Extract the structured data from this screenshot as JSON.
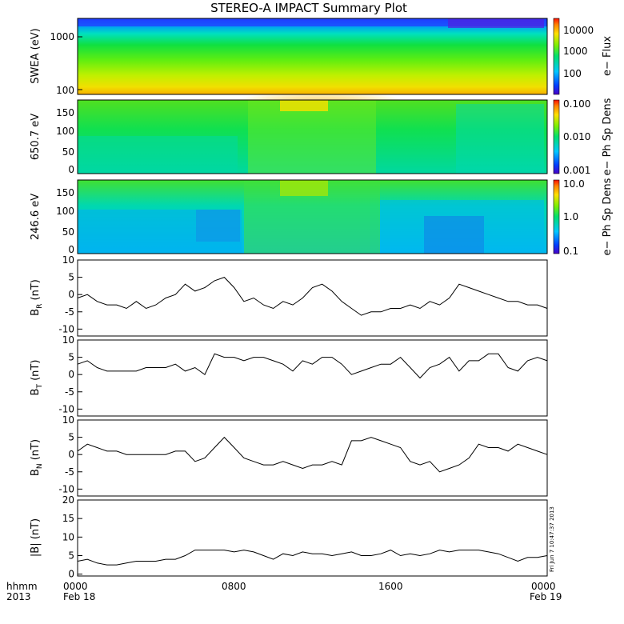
{
  "title": "STEREO-A IMPACT Summary Plot",
  "footer": {
    "fmt_label": "hhmm",
    "year_label": "2013",
    "ticks": [
      {
        "time": "0000",
        "date": "Feb 18"
      },
      {
        "time": "0800",
        "date": ""
      },
      {
        "time": "1600",
        "date": ""
      },
      {
        "time": "0000",
        "date": "Feb 19"
      }
    ]
  },
  "stamp": "Fri Jun  7 10:47:37 2013",
  "colors": {
    "axis": "#000000",
    "line": "#000000",
    "background": "#ffffff"
  },
  "chart_data": [
    {
      "type": "heatmap",
      "ylabel": "SWEA (eV)",
      "y_scale": "log",
      "ylim": [
        90,
        2000
      ],
      "yticks": [
        "1000",
        "100"
      ],
      "colorbar": {
        "label": "e− Flux",
        "scale": "log",
        "ticks": [
          "10000",
          "1000",
          "100"
        ]
      },
      "description_values": {
        "x_hours": [
          0,
          8,
          16,
          24
        ]
      }
    },
    {
      "type": "heatmap",
      "ylabel": "650.7 eV",
      "ylim": [
        -5,
        180
      ],
      "yticks": [
        "150",
        "100",
        "50",
        "0"
      ],
      "colorbar": {
        "label": "e− Ph Sp Dens",
        "scale": "log",
        "ticks": [
          "0.100",
          "0.010",
          "0.001"
        ]
      }
    },
    {
      "type": "heatmap",
      "ylabel": "246.6 eV",
      "ylim": [
        -5,
        180
      ],
      "yticks": [
        "150",
        "100",
        "50",
        "0"
      ],
      "colorbar": {
        "label": "e− Ph Sp Dens",
        "scale": "log",
        "ticks": [
          "10.0",
          "1.0",
          "0.1"
        ]
      }
    },
    {
      "type": "line",
      "ylabel_main": "B",
      "ylabel_sub": "R",
      "ylabel_unit": " (nT)",
      "ylim": [
        -12,
        10
      ],
      "yticks": [
        "10",
        "5",
        "0",
        "-5",
        "-10"
      ],
      "x": [
        0,
        0.5,
        1,
        1.5,
        2,
        2.5,
        3,
        3.5,
        4,
        4.5,
        5,
        5.5,
        6,
        6.5,
        7,
        7.5,
        8,
        8.5,
        9,
        9.5,
        10,
        10.5,
        11,
        11.5,
        12,
        12.5,
        13,
        13.5,
        14,
        14.5,
        15,
        15.5,
        16,
        16.5,
        17,
        17.5,
        18,
        18.5,
        19,
        19.5,
        20,
        20.5,
        21,
        21.5,
        22,
        22.5,
        23,
        23.5,
        24
      ],
      "y": [
        -1,
        0,
        -2,
        -3,
        -3,
        -4,
        -2,
        -4,
        -3,
        -1,
        0,
        3,
        1,
        2,
        4,
        5,
        2,
        -2,
        -1,
        -3,
        -4,
        -2,
        -3,
        -1,
        2,
        3,
        1,
        -2,
        -4,
        -6,
        -5,
        -5,
        -4,
        -4,
        -3,
        -4,
        -2,
        -3,
        -1,
        3,
        2,
        1,
        0,
        -1,
        -2,
        -2,
        -3,
        -3,
        -4
      ]
    },
    {
      "type": "line",
      "ylabel_main": "B",
      "ylabel_sub": "T",
      "ylabel_unit": " (nT)",
      "ylim": [
        -12,
        10
      ],
      "yticks": [
        "10",
        "5",
        "0",
        "-5",
        "-10"
      ],
      "x": [
        0,
        0.5,
        1,
        1.5,
        2,
        2.5,
        3,
        3.5,
        4,
        4.5,
        5,
        5.5,
        6,
        6.5,
        7,
        7.5,
        8,
        8.5,
        9,
        9.5,
        10,
        10.5,
        11,
        11.5,
        12,
        12.5,
        13,
        13.5,
        14,
        14.5,
        15,
        15.5,
        16,
        16.5,
        17,
        17.5,
        18,
        18.5,
        19,
        19.5,
        20,
        20.5,
        21,
        21.5,
        22,
        22.5,
        23,
        23.5,
        24
      ],
      "y": [
        3,
        4,
        2,
        1,
        1,
        1,
        1,
        2,
        2,
        2,
        3,
        1,
        2,
        0,
        6,
        5,
        5,
        4,
        5,
        5,
        4,
        3,
        1,
        4,
        3,
        5,
        5,
        3,
        0,
        1,
        2,
        3,
        3,
        5,
        2,
        -1,
        2,
        3,
        5,
        1,
        4,
        4,
        6,
        6,
        2,
        1,
        4,
        5,
        4
      ]
    },
    {
      "type": "line",
      "ylabel_main": "B",
      "ylabel_sub": "N",
      "ylabel_unit": " (nT)",
      "ylim": [
        -12,
        10
      ],
      "yticks": [
        "10",
        "5",
        "0",
        "-5",
        "-10"
      ],
      "x": [
        0,
        0.5,
        1,
        1.5,
        2,
        2.5,
        3,
        3.5,
        4,
        4.5,
        5,
        5.5,
        6,
        6.5,
        7,
        7.5,
        8,
        8.5,
        9,
        9.5,
        10,
        10.5,
        11,
        11.5,
        12,
        12.5,
        13,
        13.5,
        14,
        14.5,
        15,
        15.5,
        16,
        16.5,
        17,
        17.5,
        18,
        18.5,
        19,
        19.5,
        20,
        20.5,
        21,
        21.5,
        22,
        22.5,
        23,
        23.5,
        24
      ],
      "y": [
        1,
        3,
        2,
        1,
        1,
        0,
        0,
        0,
        0,
        0,
        1,
        1,
        -2,
        -1,
        2,
        5,
        2,
        -1,
        -2,
        -3,
        -3,
        -2,
        -3,
        -4,
        -3,
        -3,
        -2,
        -3,
        4,
        4,
        5,
        4,
        3,
        2,
        -2,
        -3,
        -2,
        -5,
        -4,
        -3,
        -1,
        3,
        2,
        2,
        1,
        3,
        2,
        1,
        0
      ]
    },
    {
      "type": "line",
      "ylabel": "|B| (nT)",
      "ylim": [
        -0.5,
        20
      ],
      "yticks": [
        "20",
        "15",
        "10",
        "5",
        "0"
      ],
      "x": [
        0,
        0.5,
        1,
        1.5,
        2,
        2.5,
        3,
        3.5,
        4,
        4.5,
        5,
        5.5,
        6,
        6.5,
        7,
        7.5,
        8,
        8.5,
        9,
        9.5,
        10,
        10.5,
        11,
        11.5,
        12,
        12.5,
        13,
        13.5,
        14,
        14.5,
        15,
        15.5,
        16,
        16.5,
        17,
        17.5,
        18,
        18.5,
        19,
        19.5,
        20,
        20.5,
        21,
        21.5,
        22,
        22.5,
        23,
        23.5,
        24
      ],
      "y": [
        3.5,
        4,
        3,
        2.5,
        2.5,
        3,
        3.5,
        3.5,
        3.5,
        4,
        4,
        5,
        6.5,
        6.5,
        6.5,
        6.5,
        6,
        6.5,
        6,
        5,
        4,
        5.5,
        5,
        6,
        5.5,
        5.5,
        5,
        5.5,
        6,
        5,
        5,
        5.5,
        6.5,
        5,
        5.5,
        5,
        5.5,
        6.5,
        6,
        6.5,
        6.5,
        6.5,
        6,
        5.5,
        4.5,
        3.5,
        4.5,
        4.5,
        5
      ]
    }
  ]
}
